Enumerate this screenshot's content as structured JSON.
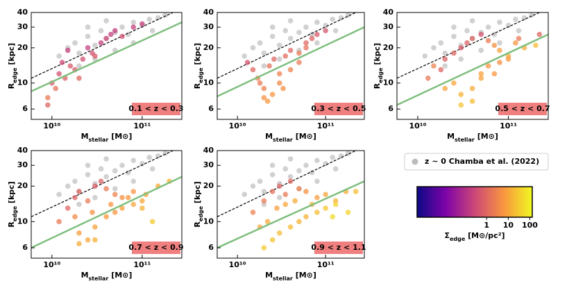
{
  "reference": {
    "name": "z ~ 0 Chamba et al. (2022)",
    "color": "#bdbdbd",
    "x": [
      12000000000.0,
      15000000000.0,
      18000000000.0,
      20000000000.0,
      25000000000.0,
      30000000000.0,
      35000000000.0,
      40000000000.0,
      50000000000.0,
      60000000000.0,
      70000000000.0,
      80000000000.0,
      100000000000.0,
      120000000000.0,
      150000000000.0,
      180000000000.0,
      20000000000.0,
      30000000000.0,
      50000000000.0,
      80000000000.0,
      130000000000.0,
      25000000000.0,
      40000000000.0
    ],
    "y": [
      17,
      20,
      22,
      18,
      25,
      21,
      28,
      24,
      27,
      30,
      26,
      33,
      31,
      35,
      36,
      38,
      14,
      16,
      19,
      22,
      28,
      30,
      34
    ]
  },
  "colorbar": {
    "label": {
      "main": "Σ",
      "sub": "edge",
      "rest": " [M⊙/pc²]"
    },
    "lim": [
      0.0006,
      130
    ],
    "ticks": [
      1,
      10,
      100
    ],
    "log": true,
    "colormap": [
      "#0d0887",
      "#7e03a8",
      "#cc4778",
      "#f89540",
      "#f0f921"
    ]
  },
  "chart_data": [
    {
      "type": "scatter",
      "label": "0.1 < z < 0.3",
      "xlog": true,
      "ylog": true,
      "xlim": [
        5900000000.0,
        275000000000.0
      ],
      "ylim": [
        4.9,
        40
      ],
      "xticks": [
        {
          "value": 10000000000.0,
          "label": "10¹⁰"
        },
        {
          "value": 100000000000.0,
          "label": "10¹¹"
        }
      ],
      "yticks": [
        6,
        10,
        20,
        30,
        40
      ],
      "xlabel": {
        "main": "M",
        "sub": "stellar",
        "rest": " [M⊙]"
      },
      "ylabel": {
        "main": "R",
        "sub": "edge",
        "rest": " [kpc]"
      },
      "x": [
        9000000000.0,
        10000000000.0,
        12000000000.0,
        13000000000.0,
        15000000000.0,
        18000000000.0,
        20000000000.0,
        22000000000.0,
        25000000000.0,
        30000000000.0,
        35000000000.0,
        40000000000.0,
        50000000000.0,
        60000000000.0,
        80000000000.0,
        100000000000.0,
        11000000000.0,
        16000000000.0,
        28000000000.0,
        45000000000.0,
        9000000000.0,
        14000000000.0
      ],
      "y": [
        6.5,
        10,
        12,
        15,
        19,
        13,
        11,
        16,
        20,
        17,
        22,
        24,
        28,
        25,
        30,
        32,
        9,
        14,
        18,
        26,
        7.5,
        11
      ],
      "sigma": [
        1,
        0.6,
        0.4,
        0.3,
        0.2,
        0.6,
        1,
        0.4,
        0.2,
        0.6,
        0.2,
        0.3,
        0.2,
        0.4,
        0.2,
        0.2,
        1.5,
        0.6,
        0.4,
        0.2,
        2,
        0.8
      ],
      "fit": {
        "color": "#7fbf7f",
        "x": [
          5900000000.0,
          275000000000.0
        ],
        "y": [
          8.5,
          33
        ]
      },
      "reference_line": {
        "color": "#000000",
        "x": [
          5900000000.0,
          220000000000.0
        ],
        "y": [
          11,
          40
        ]
      }
    },
    {
      "type": "scatter",
      "label": "0.3 < z < 0.5",
      "xlog": true,
      "ylog": true,
      "xlim": [
        5900000000.0,
        275000000000.0
      ],
      "ylim": [
        4.9,
        40
      ],
      "xticks": [
        {
          "value": 10000000000.0,
          "label": "10¹⁰"
        },
        {
          "value": 100000000000.0,
          "label": "10¹¹"
        }
      ],
      "yticks": [
        6,
        10,
        20,
        30,
        40
      ],
      "xlabel": {
        "main": "M",
        "sub": "stellar",
        "rest": " [M⊙]"
      },
      "ylabel": {
        "main": "R",
        "sub": "edge",
        "rest": " [kpc]"
      },
      "x": [
        13000000000.0,
        15000000000.0,
        18000000000.0,
        20000000000.0,
        23000000000.0,
        26000000000.0,
        30000000000.0,
        35000000000.0,
        40000000000.0,
        50000000000.0,
        60000000000.0,
        70000000000.0,
        80000000000.0,
        100000000000.0,
        20000000000.0,
        25000000000.0,
        30000000000.0,
        40000000000.0,
        50000000000.0,
        17000000000.0,
        22000000000.0,
        33000000000.0,
        60000000000.0
      ],
      "y": [
        15,
        13,
        10,
        9,
        14,
        16,
        12,
        17,
        19,
        18,
        22,
        24,
        26,
        28,
        7.5,
        8,
        10,
        13,
        15,
        11,
        7,
        9,
        20
      ],
      "sigma": [
        0.5,
        1,
        2,
        3,
        1.5,
        1,
        3,
        1.2,
        1,
        2,
        1,
        0.8,
        0.6,
        0.5,
        5,
        6,
        4,
        3,
        2,
        2.5,
        7,
        5,
        1.5
      ],
      "fit": {
        "color": "#7fbf7f",
        "x": [
          5900000000.0,
          275000000000.0
        ],
        "y": [
          7.7,
          30
        ]
      },
      "reference_line": {
        "color": "#000000",
        "x": [
          5900000000.0,
          220000000000.0
        ],
        "y": [
          11,
          40
        ]
      }
    },
    {
      "type": "scatter",
      "label": "0.5 < z < 0.7",
      "xlog": true,
      "ylog": true,
      "xlim": [
        5900000000.0,
        275000000000.0
      ],
      "ylim": [
        4.9,
        40
      ],
      "xticks": [
        {
          "value": 10000000000.0,
          "label": "10¹⁰"
        },
        {
          "value": 100000000000.0,
          "label": "10¹¹"
        }
      ],
      "yticks": [
        6,
        10,
        20,
        30,
        40
      ],
      "xlabel": {
        "main": "M",
        "sub": "stellar",
        "rest": " [M⊙]"
      },
      "ylabel": {
        "main": "R",
        "sub": "edge",
        "rest": " [kpc]"
      },
      "x": [
        13000000000.0,
        18000000000.0,
        20000000000.0,
        25000000000.0,
        30000000000.0,
        35000000000.0,
        40000000000.0,
        50000000000.0,
        60000000000.0,
        70000000000.0,
        80000000000.0,
        100000000000.0,
        120000000000.0,
        150000000000.0,
        200000000000.0,
        25000000000.0,
        30000000000.0,
        40000000000.0,
        50000000000.0,
        60000000000.0,
        80000000000.0,
        100000000000.0,
        30000000000.0,
        40000000000.0,
        50000000000.0,
        20000000000.0,
        15000000000.0,
        70000000000.0,
        130000000000.0,
        220000000000.0
      ],
      "y": [
        11,
        13,
        16,
        18,
        20,
        22,
        24,
        26,
        23,
        21,
        19,
        17,
        22,
        20,
        21,
        10,
        8,
        9,
        12,
        14,
        15,
        16,
        6.5,
        7,
        11,
        9,
        14,
        12,
        24,
        26
      ],
      "sigma": [
        2,
        1,
        0.8,
        1,
        0.6,
        0.8,
        1,
        0.5,
        2,
        5,
        8,
        10,
        6,
        12,
        20,
        10,
        15,
        12,
        8,
        6,
        5,
        7,
        25,
        20,
        9,
        10,
        3,
        6,
        2,
        1
      ],
      "fit": {
        "color": "#7fbf7f",
        "x": [
          5900000000.0,
          275000000000.0
        ],
        "y": [
          6.5,
          26
        ]
      },
      "reference_line": {
        "color": "#000000",
        "x": [
          5900000000.0,
          220000000000.0
        ],
        "y": [
          11,
          40
        ]
      }
    },
    {
      "type": "scatter",
      "label": "0.7 < z < 0.9",
      "xlog": true,
      "ylog": true,
      "xlim": [
        5900000000.0,
        275000000000.0
      ],
      "ylim": [
        4.9,
        40
      ],
      "xticks": [
        {
          "value": 10000000000.0,
          "label": "10¹⁰"
        },
        {
          "value": 100000000000.0,
          "label": "10¹¹"
        }
      ],
      "yticks": [
        6,
        10,
        20,
        30,
        40
      ],
      "xlabel": {
        "main": "M",
        "sub": "stellar",
        "rest": " [M⊙]"
      },
      "ylabel": {
        "main": "R",
        "sub": "edge",
        "rest": " [kpc]"
      },
      "x": [
        12000000000.0,
        15000000000.0,
        18000000000.0,
        20000000000.0,
        25000000000.0,
        30000000000.0,
        35000000000.0,
        40000000000.0,
        50000000000.0,
        60000000000.0,
        80000000000.0,
        100000000000.0,
        150000000000.0,
        200000000000.0,
        20000000000.0,
        25000000000.0,
        30000000000.0,
        40000000000.0,
        50000000000.0,
        60000000000.0,
        80000000000.0,
        100000000000.0,
        130000000000.0,
        20000000000.0,
        30000000000.0,
        18000000000.0,
        28000000000.0,
        45000000000.0,
        70000000000.0,
        110000000000.0
      ],
      "y": [
        10,
        13,
        16,
        18,
        15,
        20,
        22,
        19,
        17,
        16,
        18,
        15,
        20,
        22,
        8,
        7,
        9,
        11,
        12,
        13,
        14,
        13,
        10,
        6.5,
        7,
        11,
        12,
        14,
        16,
        17
      ],
      "sigma": [
        2,
        1,
        0.8,
        1,
        2,
        0.7,
        0.8,
        2,
        3,
        5,
        6,
        10,
        12,
        15,
        8,
        10,
        9,
        7,
        6,
        8,
        10,
        15,
        30,
        12,
        14,
        4,
        5,
        6,
        7,
        9
      ],
      "fit": {
        "color": "#7fbf7f",
        "x": [
          5900000000.0,
          275000000000.0
        ],
        "y": [
          6,
          24
        ]
      },
      "reference_line": {
        "color": "#000000",
        "x": [
          5900000000.0,
          220000000000.0
        ],
        "y": [
          11,
          40
        ]
      }
    },
    {
      "type": "scatter",
      "label": "0.9 < z < 1.1",
      "xlog": true,
      "ylog": true,
      "xlim": [
        5900000000.0,
        275000000000.0
      ],
      "ylim": [
        4.9,
        40
      ],
      "xticks": [
        {
          "value": 10000000000.0,
          "label": "10¹⁰"
        },
        {
          "value": 100000000000.0,
          "label": "10¹¹"
        }
      ],
      "yticks": [
        6,
        10,
        20,
        30,
        40
      ],
      "xlabel": {
        "main": "M",
        "sub": "stellar",
        "rest": " [M⊙]"
      },
      "ylabel": {
        "main": "R",
        "sub": "edge",
        "rest": " [kpc]"
      },
      "x": [
        15000000000.0,
        20000000000.0,
        25000000000.0,
        30000000000.0,
        35000000000.0,
        40000000000.0,
        50000000000.0,
        60000000000.0,
        80000000000.0,
        100000000000.0,
        130000000000.0,
        170000000000.0,
        20000000000.0,
        25000000000.0,
        30000000000.0,
        40000000000.0,
        50000000000.0,
        60000000000.0,
        80000000000.0,
        100000000000.0,
        130000000000.0,
        220000000000.0,
        18000000000.0,
        22000000000.0,
        28000000000.0,
        35000000000.0,
        45000000000.0,
        70000000000.0,
        120000000000.0,
        180000000000.0
      ],
      "y": [
        12,
        15,
        18,
        20,
        17,
        22,
        19,
        18,
        16,
        17,
        15,
        18,
        6,
        7,
        8,
        9,
        10,
        11,
        12,
        13,
        14,
        18,
        9,
        10,
        13,
        14,
        15,
        14,
        11,
        12
      ],
      "sigma": [
        3,
        2,
        1.5,
        1,
        2,
        1,
        3,
        5,
        8,
        10,
        15,
        12,
        30,
        25,
        20,
        18,
        15,
        14,
        20,
        30,
        40,
        20,
        10,
        12,
        8,
        10,
        12,
        15,
        50,
        40
      ],
      "fit": {
        "color": "#7fbf7f",
        "x": [
          5900000000.0,
          275000000000.0
        ],
        "y": [
          6,
          22
        ]
      },
      "reference_line": {
        "color": "#000000",
        "x": [
          5900000000.0,
          220000000000.0
        ],
        "y": [
          11,
          40
        ]
      }
    }
  ]
}
